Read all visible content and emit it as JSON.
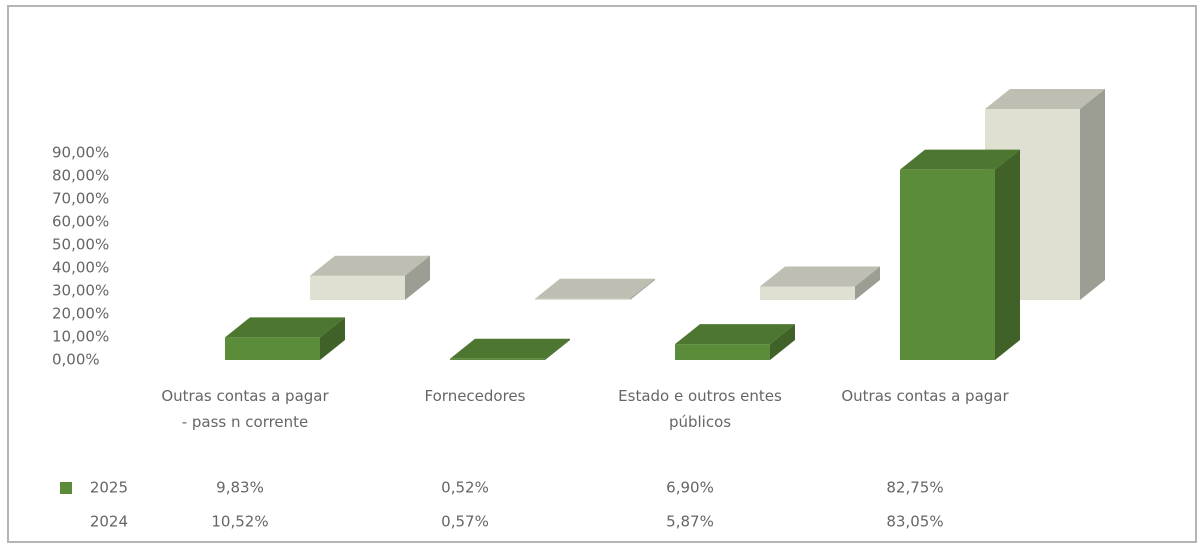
{
  "chart_data": {
    "type": "bar3d",
    "categories": [
      "Outras contas a pagar - pass n corrente",
      "Fornecedores",
      "Estado e outros entes públicos",
      "Outras contas a pagar"
    ],
    "series": [
      {
        "name": "2025",
        "color": "#5b8c3a",
        "values": [
          9.83,
          0.52,
          6.9,
          82.75
        ],
        "value_labels": [
          "9,83%",
          "0,52%",
          "6,90%",
          "82,75%"
        ]
      },
      {
        "name": "2024",
        "color": "#dfe0d2",
        "values": [
          10.52,
          0.57,
          5.87,
          83.05
        ],
        "value_labels": [
          "10,52%",
          "0,57%",
          "5,87%",
          "83,05%"
        ]
      }
    ],
    "ylim": [
      0,
      90
    ],
    "yticks": [
      {
        "value": 0,
        "label": "0,00%"
      },
      {
        "value": 10,
        "label": "10,00%"
      },
      {
        "value": 20,
        "label": "20,00%"
      },
      {
        "value": 30,
        "label": "30,00%"
      },
      {
        "value": 40,
        "label": "40,00%"
      },
      {
        "value": 50,
        "label": "50,00%"
      },
      {
        "value": 60,
        "label": "60,00%"
      },
      {
        "value": 70,
        "label": "70,00%"
      },
      {
        "value": 80,
        "label": "80,00%"
      },
      {
        "value": 90,
        "label": "90,00%"
      }
    ],
    "grid": false
  }
}
